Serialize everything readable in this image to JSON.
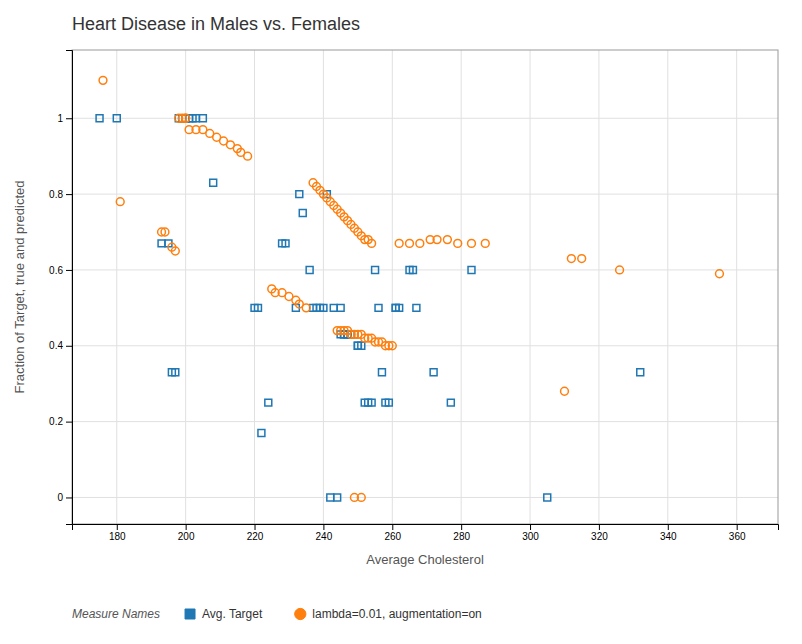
{
  "chart_data": {
    "type": "scatter",
    "title": "Heart Disease in Males vs. Females",
    "xlabel": "Average Cholesterol",
    "ylabel": "Fraction of Target, true and predicted",
    "xlim": [
      167,
      372
    ],
    "ylim": [
      -0.07,
      1.18
    ],
    "xticks": [
      180,
      200,
      220,
      240,
      260,
      280,
      300,
      320,
      340,
      360
    ],
    "yticks": [
      0.0,
      0.2,
      0.4,
      0.6,
      0.8,
      1.0
    ],
    "grid": true,
    "legend": "bottom",
    "legend_title": "Measure Names",
    "series": [
      {
        "name": "Avg. Target",
        "marker": "square",
        "x": [
          175,
          180,
          193,
          195,
          196,
          197,
          198,
          199,
          200,
          200,
          201,
          202,
          203,
          205,
          208,
          220,
          221,
          222,
          224,
          228,
          229,
          232,
          233,
          234,
          236,
          237,
          238,
          239,
          240,
          241,
          242,
          244,
          243,
          245,
          245,
          246,
          246,
          247,
          247,
          248,
          248,
          249,
          250,
          250,
          251,
          252,
          253,
          254,
          255,
          256,
          257,
          258,
          259,
          261,
          261,
          262,
          265,
          266,
          267,
          272,
          277,
          283,
          305,
          332
        ],
        "values": [
          1.0,
          1.0,
          0.67,
          0.67,
          0.33,
          0.33,
          1.0,
          1.0,
          1.0,
          1.0,
          1.0,
          1.0,
          1.0,
          1.0,
          0.83,
          0.5,
          0.5,
          0.17,
          0.25,
          0.67,
          0.67,
          0.5,
          0.8,
          0.75,
          0.6,
          0.5,
          0.5,
          0.5,
          0.5,
          0.8,
          0.0,
          0.0,
          0.5,
          0.5,
          0.43,
          0.43,
          0.43,
          0.43,
          0.43,
          0.43,
          0.43,
          0.43,
          0.4,
          0.4,
          0.4,
          0.25,
          0.25,
          0.25,
          0.6,
          0.5,
          0.33,
          0.25,
          0.25,
          0.5,
          0.5,
          0.5,
          0.6,
          0.6,
          0.5,
          0.33,
          0.25,
          0.6,
          0.0,
          0.33
        ]
      },
      {
        "name": "lambda=0.01, augmentation=on",
        "marker": "circle",
        "x": [
          176,
          181,
          193,
          194,
          196,
          197,
          198,
          199,
          200,
          200,
          201,
          203,
          205,
          207,
          209,
          211,
          213,
          215,
          216,
          218,
          237,
          238,
          239,
          240,
          241,
          242,
          243,
          244,
          245,
          246,
          247,
          248,
          249,
          250,
          251,
          252,
          253,
          254,
          225,
          226,
          228,
          230,
          232,
          233,
          235,
          244,
          245,
          246,
          247,
          248,
          249,
          250,
          251,
          252,
          253,
          254,
          255,
          256,
          257,
          258,
          259,
          260,
          262,
          265,
          268,
          271,
          273,
          276,
          279,
          283,
          287,
          312,
          315,
          326,
          355,
          249,
          251,
          310
        ],
        "values": [
          1.1,
          0.78,
          0.7,
          0.7,
          0.66,
          0.65,
          1.0,
          1.0,
          1.0,
          1.0,
          0.97,
          0.97,
          0.97,
          0.96,
          0.95,
          0.94,
          0.93,
          0.92,
          0.91,
          0.9,
          0.83,
          0.82,
          0.81,
          0.8,
          0.79,
          0.78,
          0.77,
          0.76,
          0.75,
          0.74,
          0.73,
          0.72,
          0.71,
          0.7,
          0.69,
          0.68,
          0.68,
          0.67,
          0.55,
          0.54,
          0.54,
          0.53,
          0.52,
          0.51,
          0.5,
          0.44,
          0.44,
          0.44,
          0.44,
          0.43,
          0.43,
          0.43,
          0.43,
          0.42,
          0.42,
          0.42,
          0.41,
          0.41,
          0.41,
          0.4,
          0.4,
          0.4,
          0.67,
          0.67,
          0.67,
          0.68,
          0.68,
          0.68,
          0.67,
          0.67,
          0.67,
          0.63,
          0.63,
          0.6,
          0.59,
          0.0,
          0.0,
          0.28
        ]
      }
    ]
  }
}
